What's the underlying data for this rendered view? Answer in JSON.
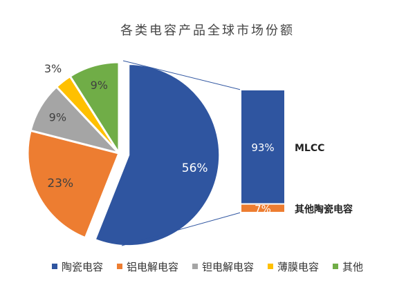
{
  "chart_data": {
    "type": "pie",
    "title": "各类电容产品全球市场份额",
    "slices": [
      {
        "name": "陶瓷电容",
        "value": 56,
        "label": "56%",
        "color": "#2F55A0"
      },
      {
        "name": "铝电解电容",
        "value": 23,
        "label": "23%",
        "color": "#ED7D31"
      },
      {
        "name": "钽电解电容",
        "value": 9,
        "label": "9%",
        "color": "#A5A5A5"
      },
      {
        "name": "薄膜电容",
        "value": 3,
        "label": "3%",
        "color": "#FFC000"
      },
      {
        "name": "其他",
        "value": 9,
        "label": "9%",
        "color": "#70AD47"
      }
    ],
    "breakdown": {
      "parent": "陶瓷电容",
      "type": "stacked-bar",
      "segments": [
        {
          "name": "MLCC",
          "value": 93,
          "label": "93%",
          "color": "#2F55A0"
        },
        {
          "name": "其他陶瓷电容",
          "value": 7,
          "label": "7%",
          "color": "#ED7D31"
        }
      ]
    },
    "legend_position": "bottom"
  }
}
